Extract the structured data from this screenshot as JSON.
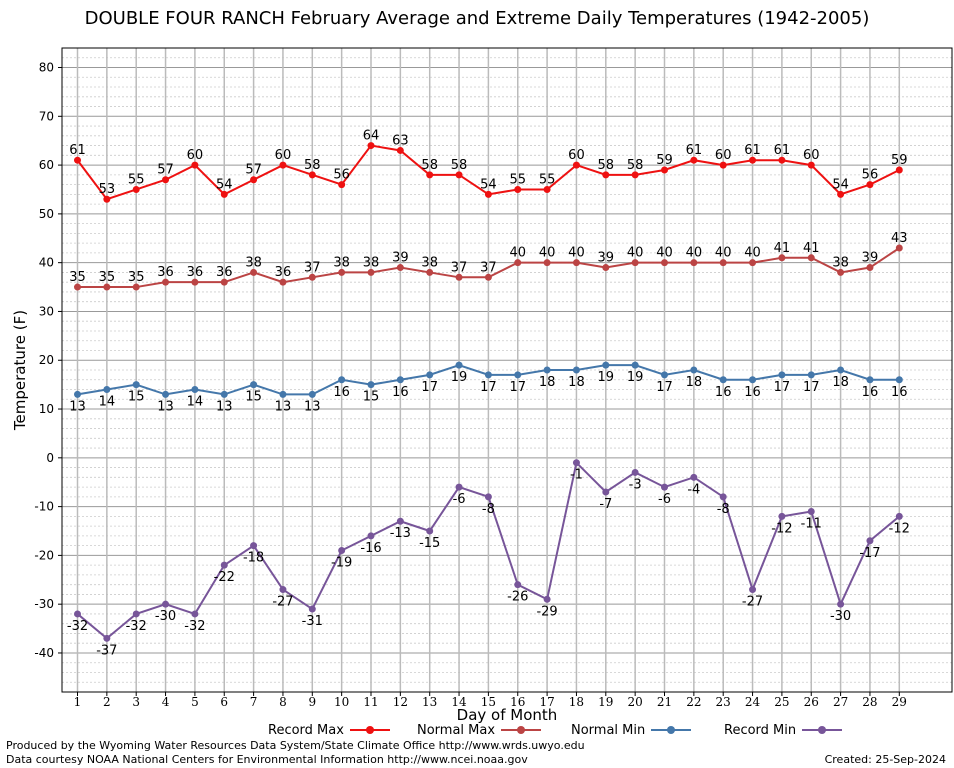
{
  "chart_data": {
    "type": "line",
    "title": "DOUBLE FOUR RANCH February Average and Extreme Daily Temperatures (1942-2005)",
    "xlabel": "Day of Month",
    "ylabel": "Temperature (F)",
    "xlim": [
      1,
      29
    ],
    "ylim": [
      -48,
      84
    ],
    "yticks": [
      -40,
      -30,
      -20,
      -10,
      0,
      10,
      20,
      30,
      40,
      50,
      60,
      70,
      80
    ],
    "x": [
      1,
      2,
      3,
      4,
      5,
      6,
      7,
      8,
      9,
      10,
      11,
      12,
      13,
      14,
      15,
      16,
      17,
      18,
      19,
      20,
      21,
      22,
      23,
      24,
      25,
      26,
      27,
      28,
      29
    ],
    "grid": true,
    "legend_position": "bottom",
    "series": [
      {
        "name": "Record Max",
        "color": "#ee1111",
        "label_position": "above",
        "values": [
          61,
          53,
          55,
          57,
          60,
          54,
          57,
          60,
          58,
          56,
          64,
          63,
          58,
          58,
          54,
          55,
          55,
          60,
          58,
          58,
          59,
          61,
          60,
          61,
          61,
          60,
          54,
          56,
          59
        ]
      },
      {
        "name": "Normal Max",
        "color": "#bb4444",
        "label_position": "above",
        "values": [
          35,
          35,
          35,
          36,
          36,
          36,
          38,
          36,
          37,
          38,
          38,
          39,
          38,
          37,
          37,
          40,
          40,
          40,
          39,
          40,
          40,
          40,
          40,
          40,
          41,
          41,
          38,
          39,
          43
        ]
      },
      {
        "name": "Normal Min",
        "color": "#4477aa",
        "label_position": "below",
        "values": [
          13,
          14,
          15,
          13,
          14,
          13,
          15,
          13,
          13,
          16,
          15,
          16,
          17,
          19,
          17,
          17,
          18,
          18,
          19,
          19,
          17,
          18,
          16,
          16,
          17,
          17,
          18,
          16,
          16
        ]
      },
      {
        "name": "Record Min",
        "color": "#775599",
        "label_position": "below",
        "values": [
          -32,
          -37,
          -32,
          -30,
          -32,
          -22,
          -18,
          -27,
          -31,
          -19,
          -16,
          -13,
          -15,
          -6,
          -8,
          -26,
          -29,
          -1,
          -7,
          -3,
          -6,
          -4,
          -8,
          -27,
          -12,
          -11,
          -30,
          -17,
          -12
        ]
      }
    ]
  },
  "footer": {
    "producer": "Produced by the Wyoming Water Resources Data System/State Climate Office http://www.wrds.uwyo.edu",
    "courtesy": "Data courtesy NOAA National Centers for Environmental Information http://www.ncei.noaa.gov",
    "created": "Created: 25-Sep-2024"
  }
}
